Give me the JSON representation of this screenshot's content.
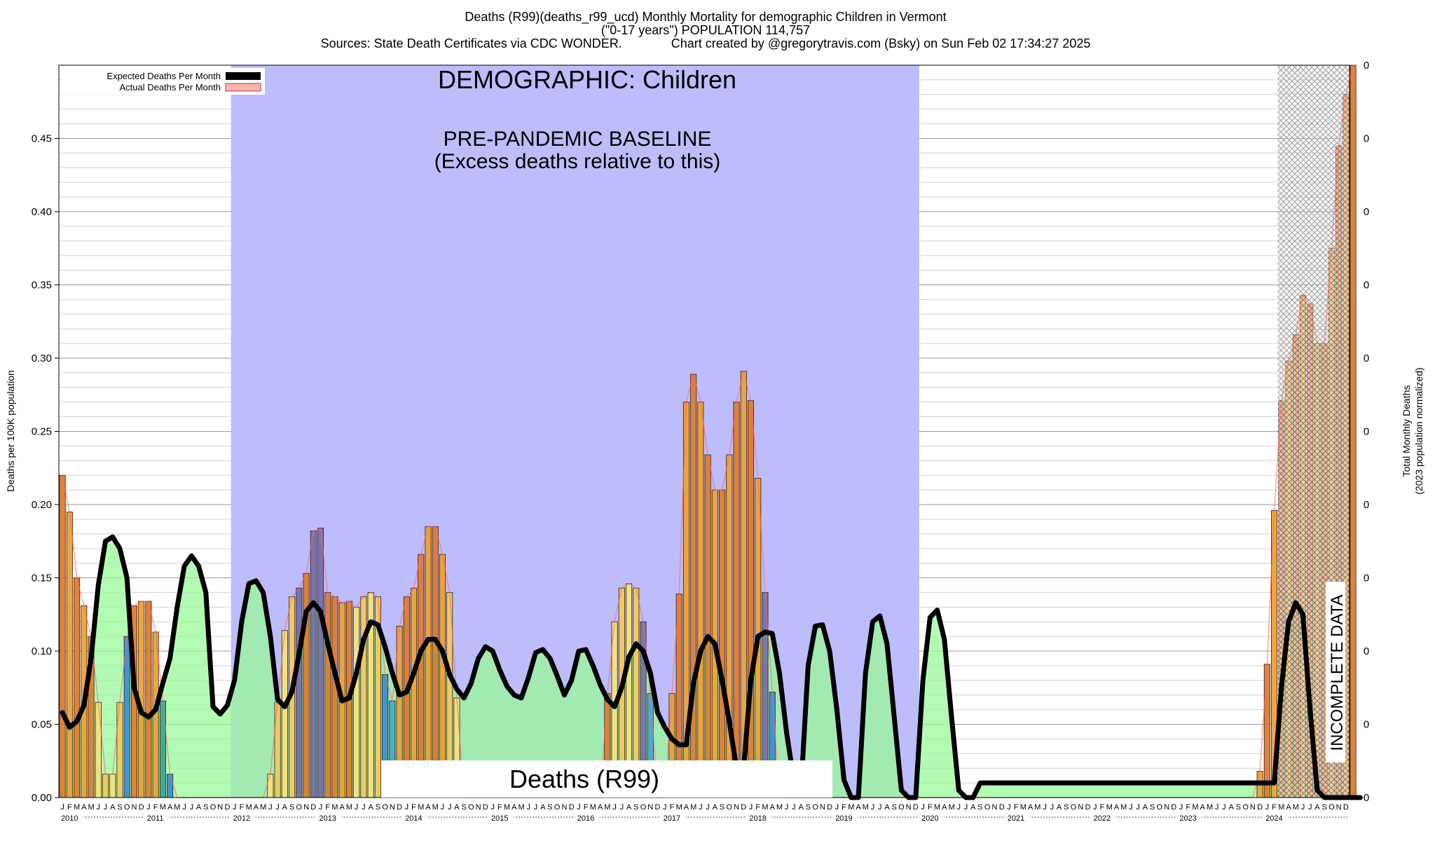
{
  "header": {
    "title_line1": "Deaths (R99)(deaths_r99_ucd) Monthly Mortality for demographic Children in Vermont",
    "title_line2": "(\"0-17 years\") POPULATION 114,757",
    "title_line3": "Sources: State Death Certificates via CDC WONDER.              Chart created by @gregorytravis.com (Bsky) on Sun Feb 02 17:34:27 2025"
  },
  "annotations": {
    "demographic": "DEMOGRAPHIC: Children",
    "baseline_line1": "PRE-PANDEMIC BASELINE",
    "baseline_line2": "(Excess deaths relative to this)",
    "cause_label": "Deaths (R99)",
    "incomplete": "INCOMPLETE DATA"
  },
  "legend": {
    "expected": "Expected Deaths Per Month",
    "actual": "Actual Deaths Per Month"
  },
  "colors": {
    "baseline_band": "#bdbdfc",
    "expected_fill": "#9af99a",
    "actual_fill": "#f4b4b0",
    "expected_line": "#000000",
    "excess_line": "#ff6666"
  },
  "chart_data": {
    "type": "bar",
    "ylabel": "Deaths per 100K population",
    "ylabel_right_line1": "Total Monthly Deaths",
    "ylabel_right_line2": "(2023 population normalized)",
    "ylim": [
      0,
      0.5
    ],
    "y_ticks": [
      "0.00",
      "0.05",
      "0.10",
      "0.15",
      "0.20",
      "0.25",
      "0.30",
      "0.35",
      "0.40",
      "0.45"
    ],
    "right_ticks": [
      "0",
      "0",
      "0",
      "0",
      "0",
      "0",
      "0",
      "0",
      "0",
      "0",
      "0"
    ],
    "years": [
      "2010",
      "2011",
      "2012",
      "2013",
      "2014",
      "2015",
      "2016",
      "2017",
      "2018",
      "2019",
      "2020",
      "2021",
      "2022",
      "2023",
      "2024"
    ],
    "month_letters": [
      "J",
      "F",
      "M",
      "A",
      "M",
      "J",
      "J",
      "A",
      "S",
      "O",
      "N",
      "D"
    ],
    "baseline_period": [
      "2012-01",
      "2019-12"
    ],
    "incomplete_period": [
      "2024-03",
      "2024-12"
    ],
    "series": [
      {
        "name": "Actual Deaths Per Month",
        "values": [
          0.22,
          0.195,
          0.15,
          0.131,
          0.11,
          0.065,
          0.016,
          0.016,
          0.065,
          0.11,
          0.131,
          0.134,
          0.134,
          0.113,
          0.066,
          0.016,
          0,
          0,
          0,
          0,
          0,
          0,
          0,
          0,
          0,
          0,
          0,
          0,
          0,
          0.016,
          0.065,
          0.114,
          0.137,
          0.143,
          0.153,
          0.182,
          0.184,
          0.14,
          0.137,
          0.133,
          0.134,
          0.13,
          0.137,
          0.14,
          0.137,
          0.084,
          0.066,
          0.117,
          0.137,
          0.143,
          0.166,
          0.185,
          0.185,
          0.166,
          0.14,
          0.068,
          0,
          0,
          0,
          0,
          0,
          0,
          0,
          0,
          0,
          0,
          0,
          0,
          0,
          0,
          0,
          0,
          0,
          0,
          0,
          0,
          0.071,
          0.12,
          0.143,
          0.146,
          0.143,
          0.12,
          0.071,
          0,
          0,
          0.071,
          0.139,
          0.27,
          0.289,
          0.27,
          0.234,
          0.21,
          0.21,
          0.234,
          0.27,
          0.291,
          0.271,
          0.218,
          0.14,
          0.072,
          0,
          0,
          0,
          0,
          0,
          0,
          0,
          0,
          0,
          0,
          0,
          0,
          0,
          0,
          0,
          0,
          0,
          0,
          0,
          0,
          0,
          0,
          0,
          0,
          0,
          0,
          0,
          0,
          0,
          0,
          0,
          0,
          0,
          0,
          0,
          0,
          0,
          0,
          0,
          0,
          0,
          0,
          0,
          0,
          0,
          0,
          0,
          0,
          0,
          0,
          0,
          0,
          0,
          0,
          0,
          0,
          0,
          0,
          0,
          0,
          0,
          0,
          0,
          0,
          0,
          0,
          0,
          0.018,
          0.091,
          0.196,
          0.271,
          0.298,
          0.316,
          0.343,
          0.337,
          0.31,
          0.31,
          0.375,
          0.445,
          0.48,
          0.5
        ]
      },
      {
        "name": "Expected Deaths Per Month",
        "values": [
          0.058,
          0.048,
          0.052,
          0.063,
          0.095,
          0.145,
          0.175,
          0.178,
          0.17,
          0.15,
          0.075,
          0.058,
          0.055,
          0.06,
          0.078,
          0.095,
          0.13,
          0.158,
          0.165,
          0.158,
          0.14,
          0.062,
          0.057,
          0.063,
          0.08,
          0.12,
          0.146,
          0.148,
          0.14,
          0.11,
          0.067,
          0.062,
          0.072,
          0.098,
          0.127,
          0.133,
          0.127,
          0.105,
          0.085,
          0.066,
          0.068,
          0.085,
          0.108,
          0.12,
          0.118,
          0.103,
          0.085,
          0.07,
          0.072,
          0.085,
          0.1,
          0.108,
          0.108,
          0.1,
          0.084,
          0.074,
          0.068,
          0.078,
          0.095,
          0.103,
          0.1,
          0.087,
          0.076,
          0.07,
          0.068,
          0.082,
          0.099,
          0.101,
          0.095,
          0.083,
          0.07,
          0.08,
          0.1,
          0.101,
          0.09,
          0.077,
          0.067,
          0.062,
          0.075,
          0.096,
          0.105,
          0.1,
          0.085,
          0.058,
          0.048,
          0.04,
          0.036,
          0.036,
          0.078,
          0.1,
          0.11,
          0.105,
          0.08,
          0.052,
          0.02,
          0.02,
          0.08,
          0.11,
          0.113,
          0.112,
          0.085,
          0.044,
          0.012,
          0.006,
          0.09,
          0.117,
          0.118,
          0.1,
          0.06,
          0.012,
          0,
          0,
          0.085,
          0.12,
          0.124,
          0.105,
          0.055,
          0.005,
          0,
          0,
          0.08,
          0.123,
          0.128,
          0.108,
          0.055,
          0.005,
          0,
          0,
          0.01,
          0.01,
          0.01,
          0.01,
          0.01,
          0.01,
          0.01,
          0.01,
          0.01,
          0.01,
          0.01,
          0.01,
          0.01,
          0.01,
          0.01,
          0.01,
          0.01,
          0.01,
          0.01,
          0.01,
          0.01,
          0.01,
          0.01,
          0.01,
          0.01,
          0.01,
          0.01,
          0.01,
          0.01,
          0.01,
          0.01,
          0.01,
          0.01,
          0.01,
          0.01,
          0.01,
          0.01,
          0.01,
          0.01,
          0.01,
          0.01,
          0.01,
          0.075,
          0.12,
          0.133,
          0.125,
          0.06,
          0.005,
          0,
          0,
          0,
          0,
          0,
          0
        ]
      }
    ]
  }
}
